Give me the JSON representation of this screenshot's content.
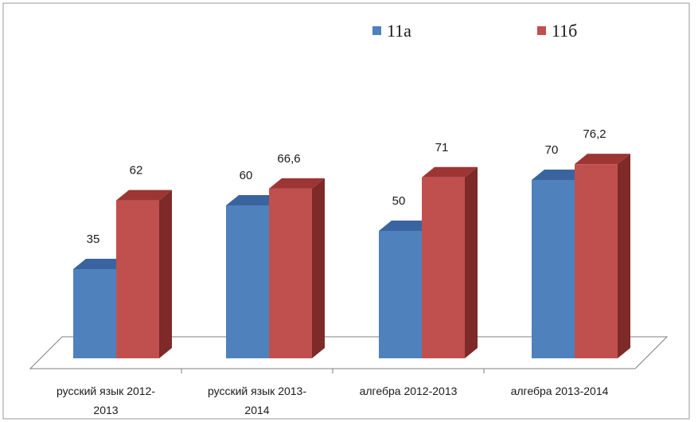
{
  "chart_data": {
    "type": "bar",
    "categories": [
      [
        "русский язык 2012-",
        "2013"
      ],
      [
        "русский язык 2013-",
        "2014"
      ],
      [
        "алгебра  2012-2013"
      ],
      [
        "алгебра  2013-2014"
      ]
    ],
    "series": [
      {
        "name": "11а",
        "values": [
          35,
          60,
          50,
          70
        ],
        "labels": [
          "35",
          "60",
          "50",
          "70"
        ],
        "color": "#4f81bd",
        "top": "#3a64a0",
        "side": "#2f5185"
      },
      {
        "name": "11б",
        "values": [
          62,
          66.6,
          71,
          76.2
        ],
        "labels": [
          "62",
          "66,6",
          "71",
          "76,2"
        ],
        "color": "#c0504d",
        "top": "#9c3533",
        "side": "#7d2a28"
      }
    ],
    "ylim": [
      0,
      90
    ],
    "legend_position": "top-right",
    "grid": false
  }
}
